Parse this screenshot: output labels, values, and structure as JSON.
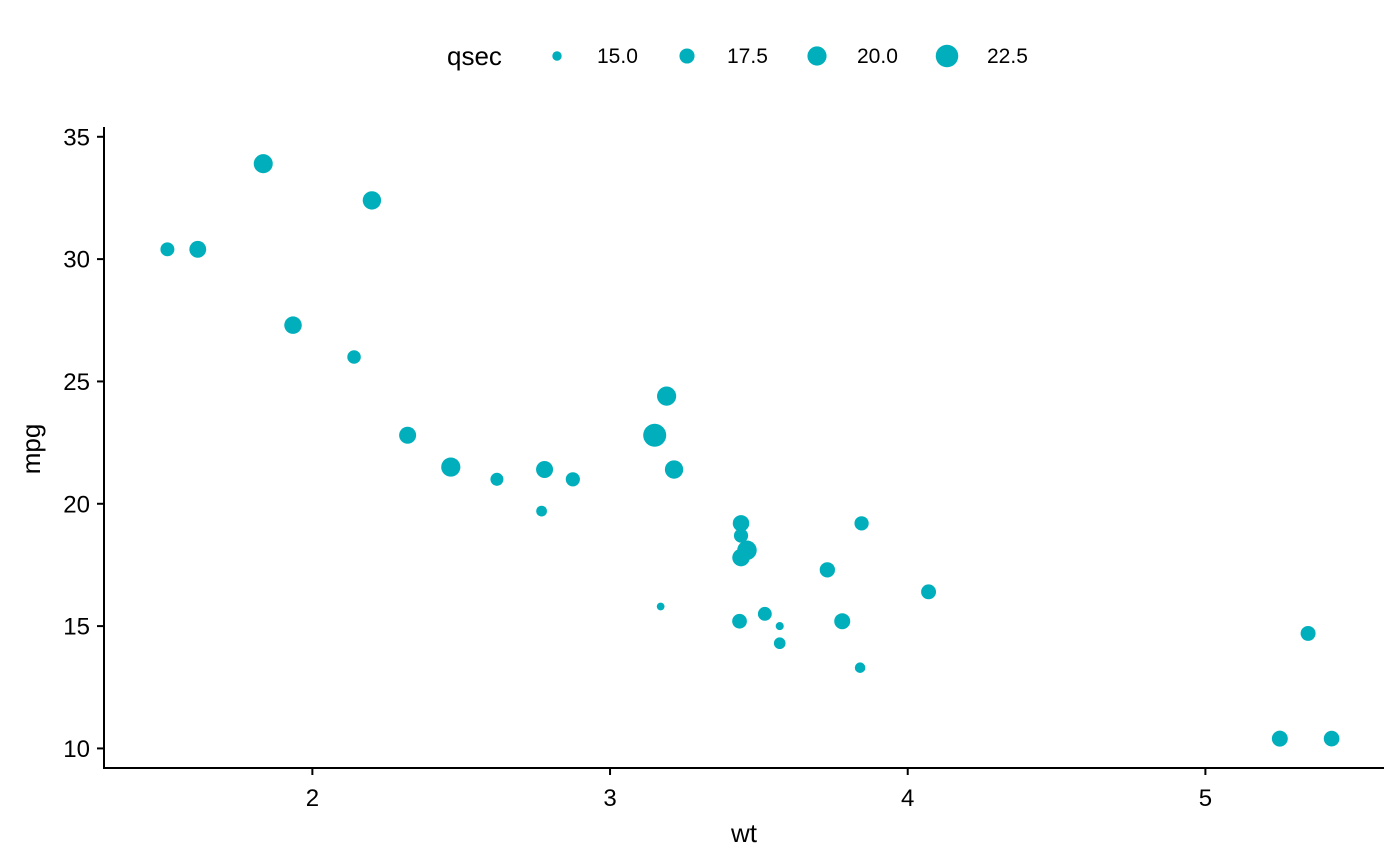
{
  "chart_data": {
    "type": "scatter",
    "xlabel": "wt",
    "ylabel": "mpg",
    "size_variable": "qsec",
    "color": "#00AFBB",
    "xlim": [
      1.3,
      5.6
    ],
    "ylim": [
      9.2,
      35.4
    ],
    "x_ticks": [
      2,
      3,
      4,
      5
    ],
    "y_ticks": [
      10,
      15,
      20,
      25,
      30,
      35
    ],
    "legend": {
      "title": "qsec",
      "position": "top",
      "entries": [
        {
          "label": "15.0",
          "value": 15.0
        },
        {
          "label": "17.5",
          "value": 17.5
        },
        {
          "label": "20.0",
          "value": 20.0
        },
        {
          "label": "22.5",
          "value": 22.5
        }
      ]
    },
    "points": [
      {
        "wt": 2.62,
        "mpg": 21.0,
        "qsec": 16.46
      },
      {
        "wt": 2.875,
        "mpg": 21.0,
        "qsec": 17.02
      },
      {
        "wt": 2.32,
        "mpg": 22.8,
        "qsec": 18.61
      },
      {
        "wt": 3.215,
        "mpg": 21.4,
        "qsec": 19.44
      },
      {
        "wt": 3.44,
        "mpg": 18.7,
        "qsec": 17.02
      },
      {
        "wt": 3.46,
        "mpg": 18.1,
        "qsec": 20.22
      },
      {
        "wt": 3.57,
        "mpg": 14.3,
        "qsec": 15.84
      },
      {
        "wt": 3.19,
        "mpg": 24.4,
        "qsec": 20.0
      },
      {
        "wt": 3.15,
        "mpg": 22.8,
        "qsec": 22.9
      },
      {
        "wt": 3.44,
        "mpg": 19.2,
        "qsec": 18.3
      },
      {
        "wt": 3.44,
        "mpg": 17.8,
        "qsec": 18.9
      },
      {
        "wt": 4.07,
        "mpg": 16.4,
        "qsec": 17.4
      },
      {
        "wt": 3.73,
        "mpg": 17.3,
        "qsec": 17.6
      },
      {
        "wt": 3.78,
        "mpg": 15.2,
        "qsec": 18.0
      },
      {
        "wt": 5.25,
        "mpg": 10.4,
        "qsec": 17.98
      },
      {
        "wt": 5.424,
        "mpg": 10.4,
        "qsec": 17.82
      },
      {
        "wt": 5.345,
        "mpg": 14.7,
        "qsec": 17.42
      },
      {
        "wt": 2.2,
        "mpg": 32.4,
        "qsec": 19.47
      },
      {
        "wt": 1.615,
        "mpg": 30.4,
        "qsec": 18.52
      },
      {
        "wt": 1.835,
        "mpg": 33.9,
        "qsec": 19.9
      },
      {
        "wt": 2.465,
        "mpg": 21.5,
        "qsec": 20.01
      },
      {
        "wt": 3.52,
        "mpg": 15.5,
        "qsec": 16.87
      },
      {
        "wt": 3.435,
        "mpg": 15.2,
        "qsec": 17.3
      },
      {
        "wt": 3.84,
        "mpg": 13.3,
        "qsec": 15.41
      },
      {
        "wt": 3.845,
        "mpg": 19.2,
        "qsec": 17.05
      },
      {
        "wt": 1.935,
        "mpg": 27.3,
        "qsec": 18.9
      },
      {
        "wt": 2.14,
        "mpg": 26.0,
        "qsec": 16.7
      },
      {
        "wt": 1.513,
        "mpg": 30.4,
        "qsec": 16.9
      },
      {
        "wt": 3.17,
        "mpg": 15.8,
        "qsec": 14.5
      },
      {
        "wt": 2.77,
        "mpg": 19.7,
        "qsec": 15.5
      },
      {
        "wt": 3.57,
        "mpg": 15.0,
        "qsec": 14.6
      },
      {
        "wt": 2.78,
        "mpg": 21.4,
        "qsec": 18.6
      }
    ]
  }
}
